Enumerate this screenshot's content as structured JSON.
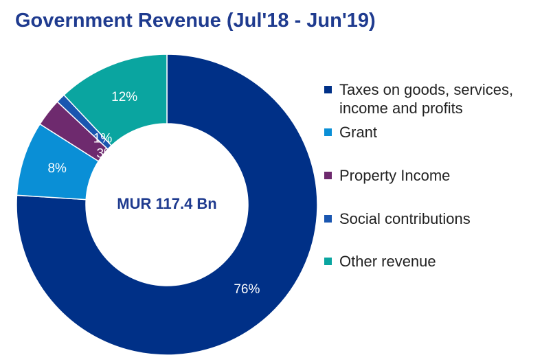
{
  "title": "Government Revenue (Jul'18 - Jun'19)",
  "chart_data": {
    "type": "pie",
    "donut": true,
    "title": "Government Revenue (Jul'18 - Jun'19)",
    "center_label": "MUR 117.4 Bn",
    "legend_position": "right",
    "slices": [
      {
        "name": "Taxes on goods, services, income and profits",
        "value": 76,
        "label": "76%",
        "color": "#003087",
        "label_color": "#ffffff"
      },
      {
        "name": "Grant",
        "value": 8,
        "label": "8%",
        "color": "#0a8fd6",
        "label_color": "#ffffff"
      },
      {
        "name": "Property Income",
        "value": 3,
        "label": "3%",
        "color": "#6e2a6e",
        "label_color": "#ffffff"
      },
      {
        "name": "Social contributions",
        "value": 1,
        "label": "1%",
        "color": "#1a56b0",
        "label_color": "#ffffff"
      },
      {
        "name": "Other revenue",
        "value": 12,
        "label": "12%",
        "color": "#0aa5a0",
        "label_color": "#ffffff"
      }
    ]
  }
}
